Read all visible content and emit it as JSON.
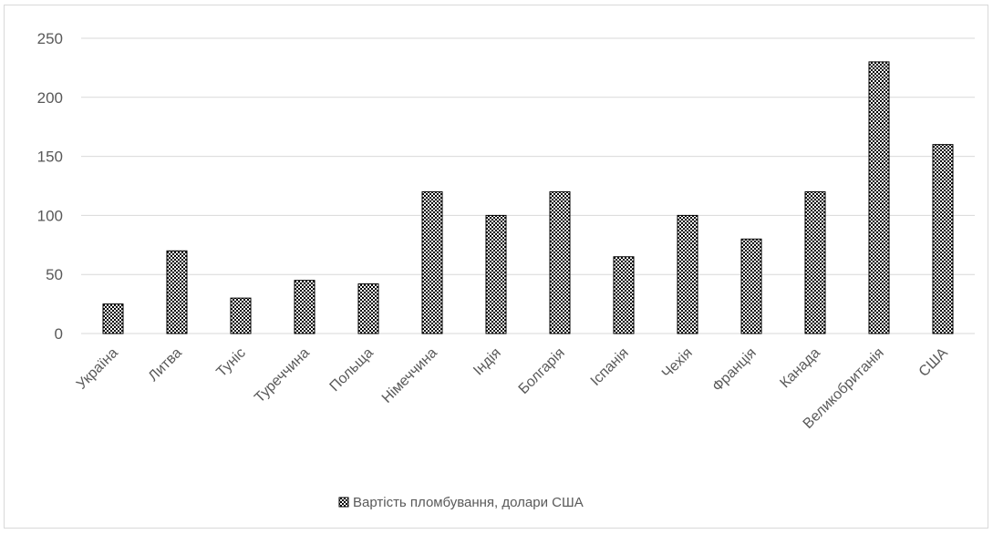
{
  "chart_data": {
    "type": "bar",
    "title": "",
    "xlabel": "",
    "ylabel": "",
    "categories": [
      "Україна",
      "Литва",
      "Туніс",
      "Туреччина",
      "Польща",
      "Німеччина",
      "Індія",
      "Болгарія",
      "Іспанія",
      "Чехія",
      "Франція",
      "Канада",
      "Великобританія",
      "США"
    ],
    "series": [
      {
        "name": "Вартість пломбування, долари США",
        "values": [
          25,
          70,
          30,
          45,
          42,
          120,
          100,
          120,
          65,
          100,
          80,
          120,
          230,
          160
        ]
      }
    ],
    "ylim": [
      0,
      250
    ],
    "yticks": [
      0,
      50,
      100,
      150,
      200,
      250
    ],
    "grid": true,
    "legend_position": "bottom",
    "colors": {
      "bar_fill": "pattern-checker",
      "bar_stroke": "#000000",
      "grid": "#d9d9d9",
      "text": "#595959"
    }
  }
}
